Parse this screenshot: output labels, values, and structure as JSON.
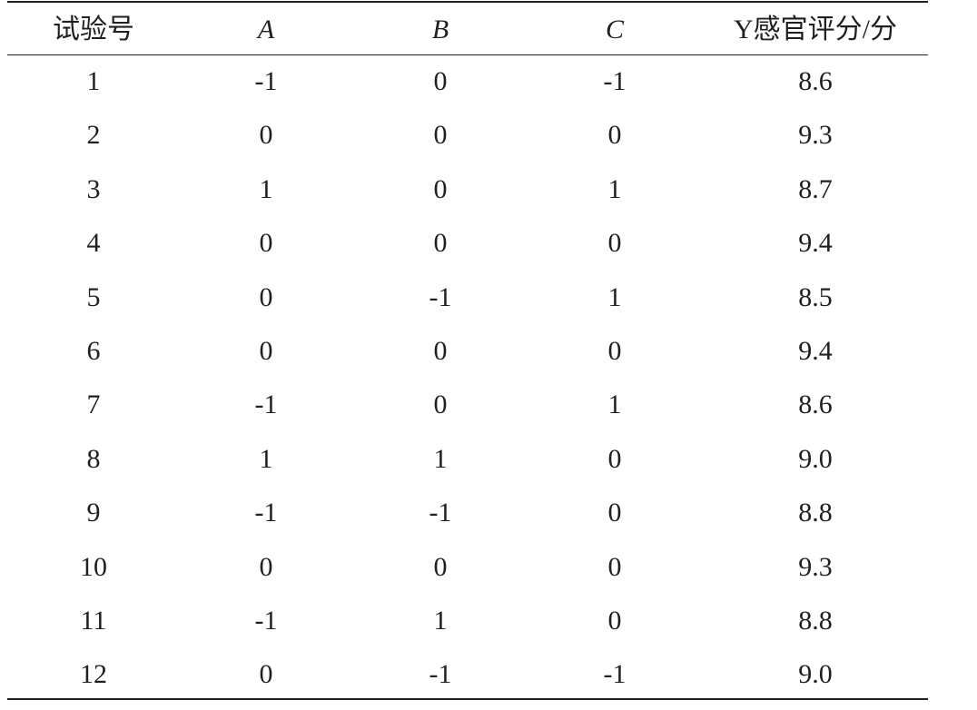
{
  "table": {
    "header": [
      "试验号",
      "A",
      "B",
      "C",
      "Y感官评分/分"
    ],
    "rows": [
      [
        "1",
        "-1",
        "0",
        "-1",
        "8.6"
      ],
      [
        "2",
        "0",
        "0",
        "0",
        "9.3"
      ],
      [
        "3",
        "1",
        "0",
        "1",
        "8.7"
      ],
      [
        "4",
        "0",
        "0",
        "0",
        "9.4"
      ],
      [
        "5",
        "0",
        "-1",
        "1",
        "8.5"
      ],
      [
        "6",
        "0",
        "0",
        "0",
        "9.4"
      ],
      [
        "7",
        "-1",
        "0",
        "1",
        "8.6"
      ],
      [
        "8",
        "1",
        "1",
        "0",
        "9.0"
      ],
      [
        "9",
        "-1",
        "-1",
        "0",
        "8.8"
      ],
      [
        "10",
        "0",
        "0",
        "0",
        "9.3"
      ],
      [
        "11",
        "-1",
        "1",
        "0",
        "8.8"
      ],
      [
        "12",
        "0",
        "-1",
        "-1",
        "9.0"
      ]
    ]
  }
}
